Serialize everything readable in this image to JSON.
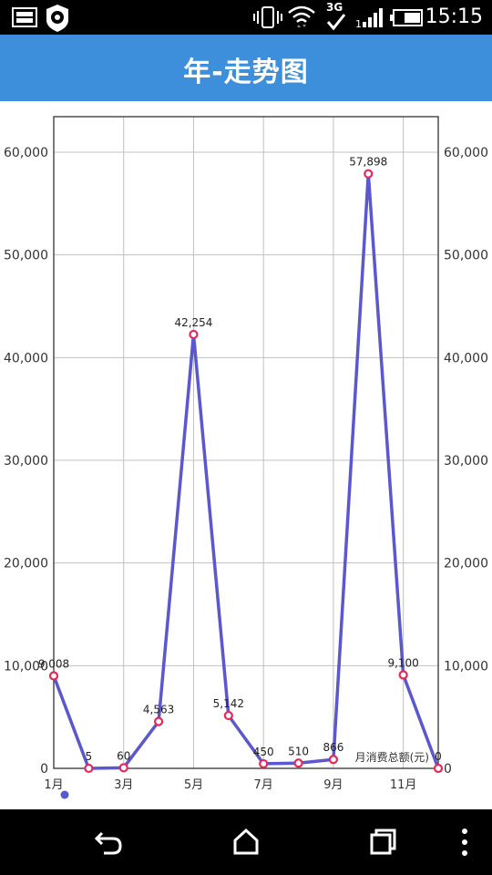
{
  "status_bar": {
    "time": "15:15",
    "network": "3G",
    "icons": [
      "gallery-icon",
      "settings-notification-icon",
      "vibrate-icon",
      "wifi-icon",
      "network-3g-icon",
      "signal-icon",
      "battery-icon"
    ]
  },
  "header": {
    "title": "年-走势图",
    "background_color": "#3d8fdb"
  },
  "chart_data": {
    "type": "line",
    "x": [
      1,
      2,
      3,
      4,
      5,
      6,
      7,
      8,
      9,
      10,
      11,
      12
    ],
    "x_tick_labels": [
      "1月",
      "3月",
      "5月",
      "7月",
      "9月",
      "11月"
    ],
    "x_tick_positions": [
      1,
      3,
      5,
      7,
      9,
      11
    ],
    "series": [
      {
        "name": "月消费总额(元)",
        "values": [
          9008,
          5,
          60,
          4563,
          42254,
          5142,
          450,
          510,
          866,
          57898,
          9100,
          0
        ],
        "data_labels": [
          "9,008",
          "5",
          "60",
          "4,563",
          "42,254",
          "5,142",
          "450",
          "510",
          "866",
          "57,898",
          "9,100",
          "0"
        ]
      }
    ],
    "ylim": [
      0,
      60000
    ],
    "y_ticks": [
      0,
      10000,
      20000,
      30000,
      40000,
      50000,
      60000
    ],
    "y_tick_labels": [
      "0",
      "10,000",
      "20,000",
      "30,000",
      "40,000",
      "50,000",
      "60,000"
    ],
    "xlim": [
      1,
      12
    ],
    "grid": true,
    "legend": "bottom-left",
    "line_color": "#5a57cf",
    "marker_color": "#e8285a",
    "grid_color": "#c0c0c0"
  },
  "nav_bar": {
    "buttons": [
      "back-icon",
      "home-icon",
      "recents-icon",
      "more-icon"
    ]
  }
}
